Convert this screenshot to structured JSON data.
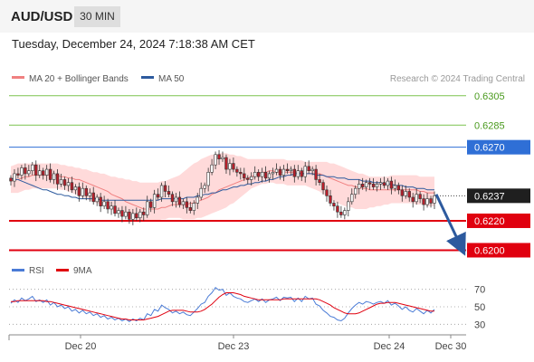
{
  "header": {
    "symbol": "AUD/USD",
    "timeframe": "30 MIN",
    "datetime": "Tuesday, December 24, 2024 7:18:38 AM CET"
  },
  "legend": {
    "ma20": "MA 20 + Bollinger Bands",
    "ma50": "MA 50",
    "rsi": "RSI",
    "ma9": "9MA",
    "source": "Research © 2024 Trading Central"
  },
  "colors": {
    "resistance": "#2f6fd6",
    "support": "#e0000f",
    "target": "#7cc34f",
    "ma20": "#f08080",
    "ma50": "#2d5a9e",
    "bollinger": "#ffd4d4",
    "candle_up": "#ffffff",
    "candle_down": "#b81f2b",
    "rsi": "#4a7bd6",
    "ma9": "#e0000f",
    "arrow": "#2d5a9e"
  },
  "chart_data": {
    "type": "candlestick",
    "xlabels": [
      "Dec 20",
      "Dec 23",
      "Dec 24",
      "Dec 30"
    ],
    "ylim": [
      0.6196,
      0.6311
    ],
    "levels": [
      {
        "label": "0.6305",
        "value": 0.6305,
        "kind": "target"
      },
      {
        "label": "0.6285",
        "value": 0.6285,
        "kind": "target"
      },
      {
        "label": "0.6270",
        "value": 0.627,
        "kind": "resistance"
      },
      {
        "label": "0.6237",
        "value": 0.6237,
        "kind": "last"
      },
      {
        "label": "0.6220",
        "value": 0.622,
        "kind": "support"
      },
      {
        "label": "0.6200",
        "value": 0.62,
        "kind": "support"
      }
    ],
    "arrow": {
      "from": 0.6238,
      "to": 0.6201
    },
    "closes": [
      0.6247,
      0.6252,
      0.6251,
      0.6256,
      0.6252,
      0.6254,
      0.6258,
      0.6251,
      0.6254,
      0.6251,
      0.6255,
      0.6248,
      0.6252,
      0.6245,
      0.6248,
      0.6244,
      0.6246,
      0.6241,
      0.6243,
      0.6237,
      0.6242,
      0.6237,
      0.6239,
      0.6233,
      0.6236,
      0.623,
      0.6233,
      0.6228,
      0.623,
      0.6225,
      0.6227,
      0.6223,
      0.6226,
      0.6221,
      0.6225,
      0.6222,
      0.6226,
      0.6224,
      0.6233,
      0.6229,
      0.6238,
      0.6236,
      0.6244,
      0.624,
      0.6238,
      0.6233,
      0.6236,
      0.6231,
      0.6233,
      0.6229,
      0.6227,
      0.6232,
      0.6236,
      0.6242,
      0.6244,
      0.6253,
      0.6258,
      0.6265,
      0.6262,
      0.6263,
      0.6255,
      0.6259,
      0.6255,
      0.6253,
      0.6252,
      0.6249,
      0.6248,
      0.625,
      0.6253,
      0.625,
      0.6253,
      0.6249,
      0.6252,
      0.6253,
      0.6255,
      0.6251,
      0.6255,
      0.6254,
      0.6255,
      0.625,
      0.6254,
      0.625,
      0.6257,
      0.6254,
      0.6255,
      0.6248,
      0.6246,
      0.6241,
      0.6237,
      0.6232,
      0.623,
      0.6226,
      0.6224,
      0.6227,
      0.6233,
      0.6238,
      0.6242,
      0.6245,
      0.6243,
      0.6246,
      0.6245,
      0.6243,
      0.6245,
      0.6246,
      0.6244,
      0.6247,
      0.6242,
      0.6244,
      0.6241,
      0.6237,
      0.624,
      0.6236,
      0.6233,
      0.6238,
      0.6235,
      0.6231,
      0.6235,
      0.6232,
      0.6237
    ],
    "ma20": [
      0.6247,
      0.6248,
      0.6248,
      0.6249,
      0.625,
      0.625,
      0.6251,
      0.6251,
      0.6251,
      0.6251,
      0.6251,
      0.6251,
      0.6251,
      0.6251,
      0.625,
      0.625,
      0.6249,
      0.6249,
      0.6248,
      0.6248,
      0.6247,
      0.6246,
      0.6245,
      0.6244,
      0.6243,
      0.6242,
      0.6241,
      0.624,
      0.6238,
      0.6237,
      0.6236,
      0.6235,
      0.6233,
      0.6232,
      0.6231,
      0.623,
      0.6229,
      0.6228,
      0.6228,
      0.6228,
      0.6228,
      0.6228,
      0.6229,
      0.6229,
      0.623,
      0.6231,
      0.6231,
      0.6231,
      0.6231,
      0.6231,
      0.6232,
      0.6232,
      0.6233,
      0.6234,
      0.6235,
      0.6236,
      0.6238,
      0.6239,
      0.6241,
      0.6242,
      0.6243,
      0.6244,
      0.6245,
      0.6246,
      0.6247,
      0.6248,
      0.6249,
      0.625,
      0.6251,
      0.6252,
      0.6253,
      0.6253,
      0.6254,
      0.6254,
      0.6253,
      0.6253,
      0.6253,
      0.6253,
      0.6253,
      0.6253,
      0.6253,
      0.6252,
      0.6252,
      0.6252,
      0.6252,
      0.6252,
      0.6252,
      0.6251,
      0.625,
      0.6249,
      0.6248,
      0.6247,
      0.6246,
      0.6245,
      0.6244,
      0.6244,
      0.6243,
      0.6243,
      0.6242,
      0.6242,
      0.6241,
      0.6241,
      0.6241,
      0.6241,
      0.6241,
      0.6241,
      0.6241,
      0.6241,
      0.6241,
      0.6241,
      0.6241,
      0.6241,
      0.6241,
      0.6241,
      0.624,
      0.624,
      0.6239,
      0.6239,
      0.6239
    ],
    "ma50": [
      0.6249,
      0.6248,
      0.6248,
      0.6247,
      0.6246,
      0.6245,
      0.6244,
      0.6243,
      0.6242,
      0.6241,
      0.6241,
      0.624,
      0.6239,
      0.6238,
      0.6238,
      0.6237,
      0.6237,
      0.6236,
      0.6236,
      0.6235,
      0.6235,
      0.6235,
      0.6235,
      0.6235,
      0.6235,
      0.6234,
      0.6234,
      0.6234,
      0.6234,
      0.6234,
      0.6234,
      0.6234,
      0.6234,
      0.6234,
      0.6234,
      0.6234,
      0.6234,
      0.6234,
      0.6234,
      0.6234,
      0.6234,
      0.6234,
      0.6235,
      0.6235,
      0.6235,
      0.6235,
      0.6235,
      0.6235,
      0.6235,
      0.6236,
      0.6236,
      0.6236,
      0.6237,
      0.6237,
      0.6238,
      0.6238,
      0.6239,
      0.6239,
      0.624,
      0.6241,
      0.6241,
      0.6242,
      0.6243,
      0.6243,
      0.6244,
      0.6244,
      0.6245,
      0.6245,
      0.6246,
      0.6246,
      0.6247,
      0.6247,
      0.6248,
      0.6248,
      0.6249,
      0.625,
      0.625,
      0.6251,
      0.6251,
      0.6252,
      0.6252,
      0.6252,
      0.6252,
      0.6252,
      0.6252,
      0.6251,
      0.6251,
      0.6251,
      0.625,
      0.625,
      0.625,
      0.6249,
      0.6249,
      0.6249,
      0.6248,
      0.6248,
      0.6248,
      0.6248,
      0.6247,
      0.6247,
      0.6247,
      0.6246,
      0.6246,
      0.6246,
      0.6245,
      0.6245,
      0.6245,
      0.6244,
      0.6244,
      0.6244,
      0.6243,
      0.6243,
      0.6243,
      0.6242,
      0.6242,
      0.6242,
      0.6241,
      0.6241,
      0.6241
    ],
    "bb_upper": [
      0.6257,
      0.6258,
      0.6259,
      0.6259,
      0.6259,
      0.6259,
      0.6259,
      0.6259,
      0.6259,
      0.6259,
      0.6259,
      0.6259,
      0.6259,
      0.6259,
      0.6258,
      0.6258,
      0.6257,
      0.6257,
      0.6256,
      0.6256,
      0.6255,
      0.6255,
      0.6254,
      0.6253,
      0.6253,
      0.6252,
      0.6252,
      0.6251,
      0.625,
      0.625,
      0.6249,
      0.6249,
      0.6248,
      0.6248,
      0.6247,
      0.6247,
      0.6246,
      0.6246,
      0.6246,
      0.6246,
      0.6246,
      0.6246,
      0.6247,
      0.6247,
      0.6248,
      0.6249,
      0.625,
      0.6251,
      0.6253,
      0.6255,
      0.6257,
      0.6259,
      0.626,
      0.6262,
      0.6263,
      0.6264,
      0.6265,
      0.6265,
      0.6266,
      0.6266,
      0.6266,
      0.6265,
      0.6265,
      0.6264,
      0.6264,
      0.6263,
      0.6262,
      0.6262,
      0.6262,
      0.6262,
      0.6262,
      0.6262,
      0.6262,
      0.6262,
      0.6262,
      0.6262,
      0.6262,
      0.6261,
      0.6261,
      0.6261,
      0.6261,
      0.6261,
      0.626,
      0.626,
      0.626,
      0.626,
      0.626,
      0.626,
      0.626,
      0.6259,
      0.6259,
      0.6258,
      0.6257,
      0.6256,
      0.6255,
      0.6254,
      0.6253,
      0.6252,
      0.6252,
      0.6251,
      0.625,
      0.625,
      0.625,
      0.625,
      0.625,
      0.625,
      0.6251,
      0.6251,
      0.6251,
      0.6251,
      0.6251,
      0.6251,
      0.6251,
      0.6251,
      0.625,
      0.625,
      0.625,
      0.625,
      0.625
    ],
    "bb_lower": [
      0.6239,
      0.6239,
      0.6239,
      0.624,
      0.6241,
      0.6241,
      0.6242,
      0.6242,
      0.6242,
      0.6242,
      0.6242,
      0.6242,
      0.6242,
      0.6242,
      0.6241,
      0.6241,
      0.624,
      0.6239,
      0.6238,
      0.6237,
      0.6236,
      0.6235,
      0.6234,
      0.6233,
      0.6232,
      0.6231,
      0.623,
      0.6229,
      0.6228,
      0.6226,
      0.6225,
      0.6224,
      0.6223,
      0.6222,
      0.6221,
      0.6221,
      0.622,
      0.622,
      0.622,
      0.622,
      0.622,
      0.622,
      0.6221,
      0.6221,
      0.6222,
      0.6222,
      0.6222,
      0.6222,
      0.6221,
      0.6221,
      0.6221,
      0.6221,
      0.6222,
      0.6222,
      0.6223,
      0.6224,
      0.6225,
      0.6226,
      0.6227,
      0.6228,
      0.6229,
      0.6231,
      0.6232,
      0.6234,
      0.6236,
      0.6238,
      0.624,
      0.6242,
      0.6243,
      0.6244,
      0.6245,
      0.6245,
      0.6246,
      0.6246,
      0.6245,
      0.6245,
      0.6245,
      0.6244,
      0.6244,
      0.6244,
      0.6244,
      0.6244,
      0.6244,
      0.6243,
      0.6242,
      0.6241,
      0.624,
      0.6238,
      0.6237,
      0.6235,
      0.6233,
      0.6232,
      0.6231,
      0.623,
      0.6229,
      0.6229,
      0.6228,
      0.6228,
      0.6228,
      0.6228,
      0.6229,
      0.6229,
      0.623,
      0.623,
      0.6231,
      0.6231,
      0.6232,
      0.6232,
      0.6232,
      0.6232,
      0.6232,
      0.6232,
      0.6232,
      0.6231,
      0.6231,
      0.6231,
      0.623,
      0.623,
      0.623
    ],
    "rsi": {
      "ylim": [
        20,
        80
      ],
      "ticks": [
        70,
        50,
        30
      ],
      "values": [
        54,
        58,
        55,
        60,
        57,
        59,
        62,
        56,
        58,
        55,
        58,
        52,
        55,
        50,
        52,
        48,
        50,
        45,
        47,
        43,
        46,
        42,
        44,
        40,
        42,
        38,
        40,
        36,
        38,
        35,
        37,
        34,
        36,
        33,
        36,
        34,
        37,
        35,
        42,
        40,
        47,
        45,
        52,
        49,
        47,
        43,
        45,
        42,
        44,
        41,
        40,
        44,
        48,
        53,
        55,
        62,
        66,
        72,
        69,
        70,
        63,
        66,
        62,
        60,
        59,
        56,
        55,
        57,
        59,
        56,
        59,
        55,
        58,
        59,
        61,
        57,
        61,
        60,
        61,
        56,
        60,
        56,
        62,
        59,
        60,
        53,
        51,
        46,
        43,
        39,
        38,
        35,
        34,
        37,
        43,
        48,
        52,
        55,
        53,
        56,
        55,
        53,
        55,
        56,
        54,
        57,
        52,
        54,
        51,
        47,
        50,
        46,
        44,
        48,
        45,
        42,
        46,
        43,
        47
      ],
      "ma9": [
        56,
        56,
        57,
        57,
        57,
        57,
        57,
        57,
        57,
        57,
        56,
        56,
        55,
        54,
        53,
        52,
        51,
        50,
        49,
        48,
        47,
        46,
        45,
        44,
        43,
        42,
        41,
        40,
        39,
        38,
        37,
        36,
        36,
        35,
        35,
        35,
        35,
        35,
        36,
        37,
        38,
        39,
        41,
        43,
        45,
        46,
        46,
        46,
        46,
        45,
        44,
        44,
        44,
        45,
        47,
        50,
        53,
        57,
        61,
        64,
        66,
        66,
        66,
        65,
        64,
        62,
        61,
        60,
        59,
        58,
        58,
        58,
        58,
        58,
        58,
        58,
        59,
        59,
        59,
        59,
        59,
        59,
        59,
        59,
        59,
        59,
        58,
        56,
        54,
        52,
        49,
        47,
        45,
        43,
        42,
        42,
        42,
        43,
        45,
        47,
        49,
        51,
        53,
        54,
        54,
        55,
        55,
        55,
        54,
        53,
        52,
        51,
        50,
        49,
        48,
        47,
        46,
        45,
        45
      ]
    }
  }
}
